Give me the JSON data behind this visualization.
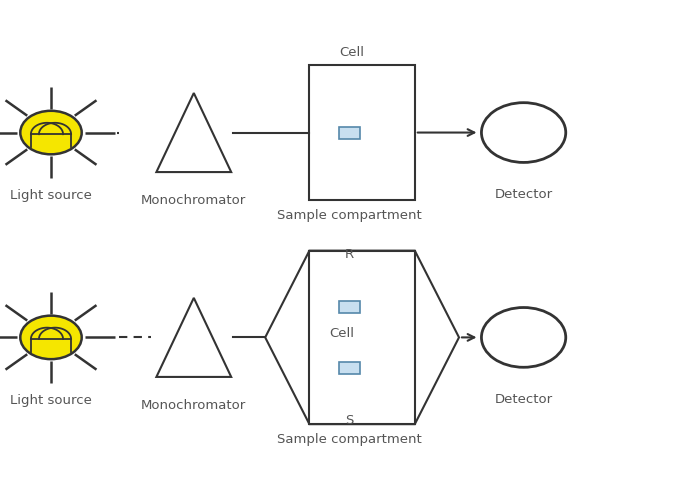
{
  "bg_color": "#ffffff",
  "line_color": "#333333",
  "cell_color": "#c8dff0",
  "cell_edge_color": "#5588aa",
  "sun_body_color": "#f5e600",
  "sun_body_edge": "#333333",
  "labels": {
    "light_source": "Light source",
    "monochromator": "Monochromator",
    "sample_compartment": "Sample compartment",
    "detector": "Detector",
    "cell_top": "Cell",
    "R": "R",
    "S": "S",
    "Cell": "Cell"
  },
  "font_size": 9.5,
  "label_color": "#555555",
  "figsize": [
    6.8,
    4.82
  ],
  "dpi": 100
}
